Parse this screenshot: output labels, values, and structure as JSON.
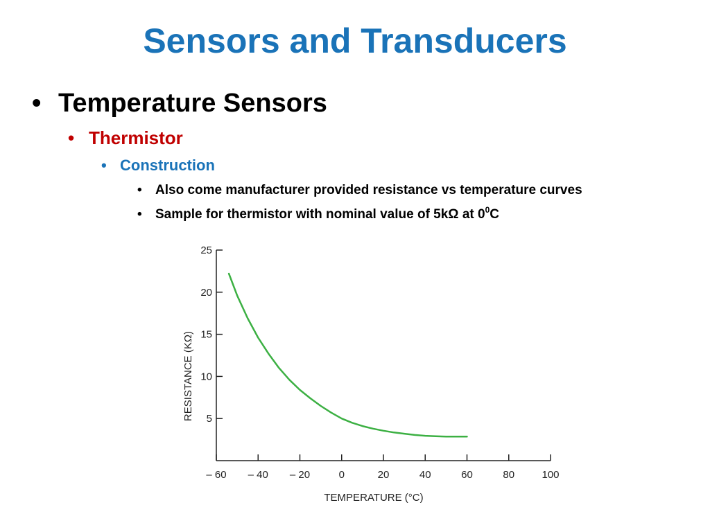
{
  "slide": {
    "title": "Sensors and Transducers",
    "bullet_l1": "Temperature Sensors",
    "bullet_l2": "Thermistor",
    "bullet_l3": "Construction",
    "bullet_l4a": "Also come manufacturer provided resistance vs temperature curves",
    "bullet_l4b_pre": "Sample for thermistor with nominal value of 5kΩ  at 0",
    "bullet_l4b_sup": "0",
    "bullet_l4b_post": "C",
    "bullet_glyph": "•"
  },
  "colors": {
    "title": "#1a73b8",
    "level2": "#c00000",
    "level3": "#1a73b8",
    "curve": "#3cb043"
  },
  "chart_data": {
    "type": "line",
    "xlabel": "TEMPERATURE (°C)",
    "ylabel": "RESISTANCE (KΩ)",
    "xlim": [
      -60,
      100
    ],
    "ylim": [
      0,
      25
    ],
    "xticks": [
      -60,
      -40,
      -20,
      0,
      20,
      40,
      60,
      80,
      100
    ],
    "xtick_labels": [
      "– 60",
      "– 40",
      "– 20",
      "0",
      "20",
      "40",
      "60",
      "80",
      "100"
    ],
    "yticks": [
      5,
      10,
      15,
      20,
      25
    ],
    "ytick_labels": [
      "5",
      "10",
      "15",
      "20",
      "25"
    ],
    "grid": false,
    "series": [
      {
        "x": [
          -54,
          -50,
          -45,
          -40,
          -35,
          -30,
          -25,
          -20,
          -15,
          -10,
          -5,
          0,
          5,
          10,
          15,
          20,
          25,
          30,
          35,
          40,
          45,
          50,
          55,
          60
        ],
        "y": [
          22.2,
          19.6,
          16.9,
          14.6,
          12.7,
          11.0,
          9.6,
          8.4,
          7.4,
          6.5,
          5.7,
          5.0,
          4.5,
          4.1,
          3.8,
          3.55,
          3.35,
          3.2,
          3.05,
          2.95,
          2.9,
          2.85,
          2.85,
          2.85
        ]
      }
    ]
  }
}
